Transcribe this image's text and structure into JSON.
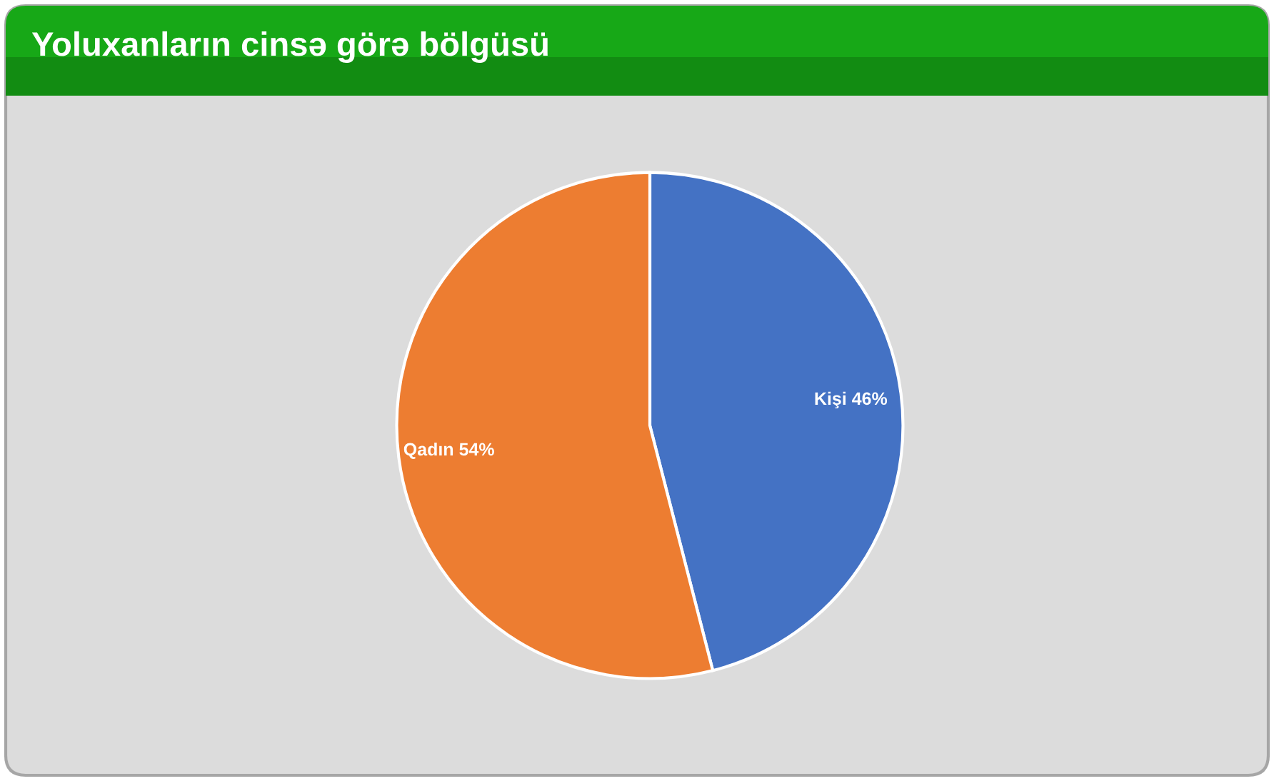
{
  "chart_data": {
    "type": "pie",
    "title": "Yoluxanların cinsə görə bölgüsü",
    "categories": [
      "Kişi",
      "Qadın"
    ],
    "values": [
      46,
      54
    ],
    "colors": [
      "#4472c4",
      "#ed7d31"
    ],
    "value_labels": [
      "46%",
      "54%"
    ]
  }
}
